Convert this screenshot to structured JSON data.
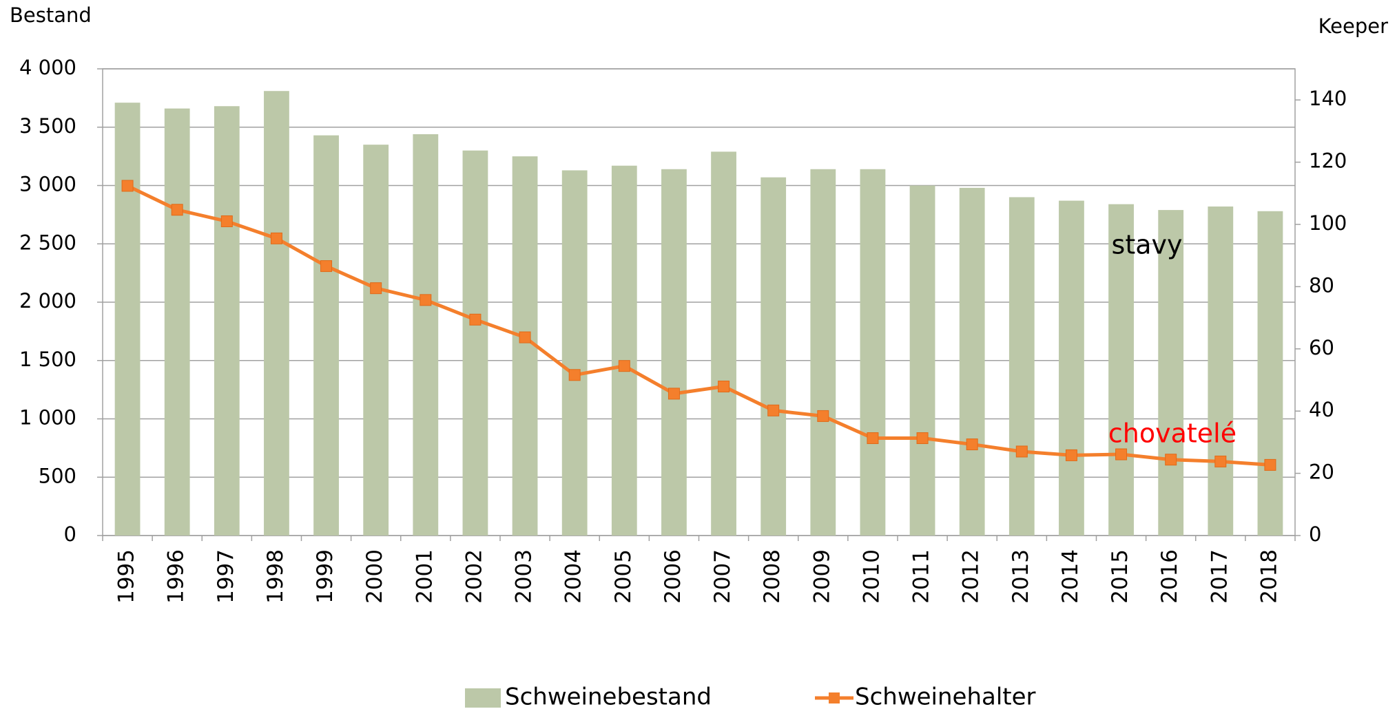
{
  "chart_data": {
    "type": "bar_line",
    "y_label": "Bestand",
    "y2_label": "Keeper",
    "categories": [
      "1995",
      "1996",
      "1997",
      "1998",
      "1999",
      "2000",
      "2001",
      "2002",
      "2003",
      "2004",
      "2005",
      "2006",
      "2007",
      "2008",
      "2009",
      "2010",
      "2011",
      "2012",
      "2013",
      "2014",
      "2015",
      "2016",
      "2017",
      "2018"
    ],
    "series": [
      {
        "name": "Schweinebestand",
        "type": "bar",
        "color": "#bcc8a8",
        "values": [
          3710,
          3660,
          3680,
          3810,
          3430,
          3350,
          3440,
          3300,
          3250,
          3130,
          3170,
          3140,
          3290,
          3070,
          3140,
          3140,
          3000,
          2980,
          2900,
          2870,
          2840,
          2790,
          2820,
          2780
        ]
      },
      {
        "name": "Schweinehalter",
        "type": "line",
        "axis": "y2",
        "color": "#f47f2c",
        "values": [
          112.4,
          104.7,
          101,
          95.5,
          86.6,
          79.5,
          75.7,
          69.4,
          63.7,
          51.6,
          54.5,
          45.6,
          47.9,
          40.2,
          38.4,
          31.3,
          31.3,
          29.3,
          27,
          25.8,
          26.1,
          24.4,
          23.8,
          22.7
        ]
      }
    ],
    "ylim": [
      0,
      4000
    ],
    "yticks": [
      0,
      500,
      {
        "value": 1000,
        "label": "1 000"
      },
      {
        "value": 1500,
        "label": "1 500"
      },
      {
        "value": 2000,
        "label": "2 000"
      },
      {
        "value": 2500,
        "label": "2 500"
      },
      {
        "value": 3000,
        "label": "3 000"
      },
      {
        "value": 3500,
        "label": "3 500"
      },
      {
        "value": 4000,
        "label": "4 000"
      }
    ],
    "y2lim": [
      0,
      150
    ],
    "y2ticks": [
      0,
      20,
      40,
      60,
      80,
      100,
      120,
      140
    ],
    "grid": true,
    "legend": "bottom",
    "annotations": [
      {
        "text": "stavy",
        "color": "#000000"
      },
      {
        "text": "chovatelé",
        "color": "#ff0000"
      }
    ]
  }
}
